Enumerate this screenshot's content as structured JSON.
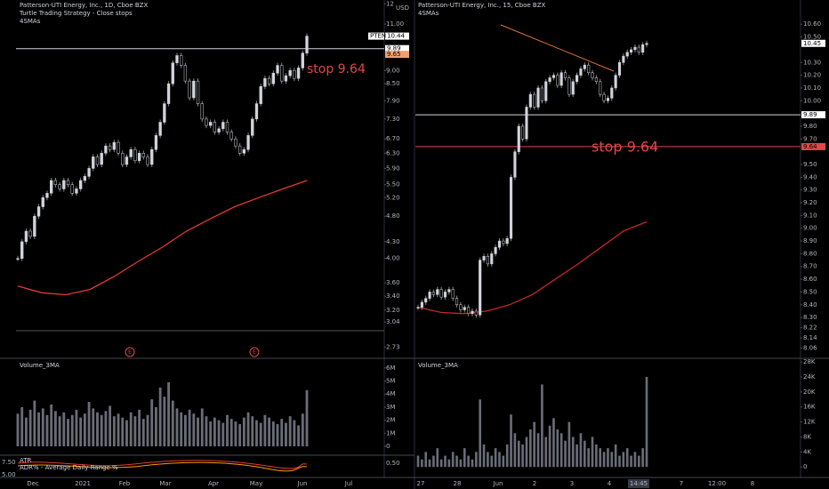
{
  "left": {
    "header": [
      "Patterson-UTI Energy, Inc., 1D, Cboe BZX",
      "Turtle Trading Strategy - Close stops",
      "4SMAs"
    ],
    "currency": "USD",
    "annotation": "stop 9.64",
    "volume_title": "Volume_3MA",
    "atr_titles": [
      "ATR",
      "ADR% - Average Daily Range %"
    ],
    "atr_left_labels": [
      "7.50",
      "5.00"
    ],
    "atr_tick": "0.50",
    "earnings": [
      "E",
      "E"
    ],
    "log": true,
    "ylim": [
      2.6,
      12.2
    ],
    "yticks": [
      {
        "value": 12,
        "label": "12"
      },
      {
        "value": 11,
        "label": "11.00"
      },
      {
        "value": 9,
        "label": "9.00"
      },
      {
        "value": 8.5,
        "label": "8.50"
      },
      {
        "value": 7.9,
        "label": "7.90"
      },
      {
        "value": 7.3,
        "label": "7.30"
      },
      {
        "value": 6.7,
        "label": "6.70"
      },
      {
        "value": 6.3,
        "label": "6.30"
      },
      {
        "value": 5.9,
        "label": "5.90"
      },
      {
        "value": 5.5,
        "label": "5.50"
      },
      {
        "value": 5.2,
        "label": "5.20"
      },
      {
        "value": 4.8,
        "label": "4.80"
      },
      {
        "value": 4.3,
        "label": "4.30"
      },
      {
        "value": 4,
        "label": "4.00"
      },
      {
        "value": 3.6,
        "label": "3.60"
      },
      {
        "value": 3.4,
        "label": "3.40"
      },
      {
        "value": 3.2,
        "label": "3.20"
      },
      {
        "value": 3.04,
        "label": "3.04"
      },
      {
        "value": 2.73,
        "label": "2.73"
      }
    ],
    "closes": [
      4.0,
      4.3,
      4.5,
      4.4,
      4.8,
      5.0,
      5.2,
      5.3,
      5.6,
      5.5,
      5.4,
      5.6,
      5.5,
      5.3,
      5.4,
      5.6,
      5.7,
      5.9,
      6.2,
      6.0,
      6.3,
      6.5,
      6.4,
      6.6,
      6.3,
      6.0,
      6.2,
      6.4,
      6.1,
      6.3,
      6.2,
      6.0,
      6.4,
      6.8,
      7.2,
      7.8,
      8.5,
      9.3,
      9.6,
      9.2,
      8.6,
      8.0,
      8.6,
      7.8,
      7.3,
      7.1,
      7.2,
      6.9,
      7.0,
      7.2,
      6.9,
      6.7,
      6.5,
      6.3,
      6.4,
      6.8,
      7.3,
      7.8,
      8.4,
      8.7,
      8.5,
      8.9,
      9.2,
      8.6,
      8.8,
      9.0,
      8.7,
      9.1,
      9.7,
      10.44
    ],
    "sma": [
      3.55,
      3.45,
      3.42,
      3.5,
      3.7,
      3.95,
      4.2,
      4.5,
      4.75,
      5.0,
      5.2,
      5.4,
      5.6
    ],
    "sma_color": "#e53935",
    "hlines": [
      {
        "value": 9.89,
        "color": "#d1d4dc"
      }
    ],
    "tags": [
      {
        "value": 10.44,
        "label": "10.44",
        "symbol": "PTEN",
        "color": "#ffffff"
      },
      {
        "value": 9.89,
        "label": "9.89",
        "color": "#ffffff"
      },
      {
        "value": 9.65,
        "label": "9.65",
        "color": "#f0a070"
      }
    ],
    "vlim": [
      -0.68,
      6.6
    ],
    "vticks": [
      {
        "value": 6,
        "label": "6M"
      },
      {
        "value": 5,
        "label": "5M"
      },
      {
        "value": 4,
        "label": "4M"
      },
      {
        "value": 3,
        "label": "3M"
      },
      {
        "value": 2,
        "label": "2M"
      },
      {
        "value": 1,
        "label": "1M"
      },
      0
    ],
    "volumes": [
      2.5,
      3,
      2.2,
      2.8,
      3.5,
      2.6,
      2.9,
      2.4,
      3.2,
      2.7,
      2.3,
      2.6,
      2.1,
      2.4,
      2.8,
      2.2,
      2.5,
      3.4,
      2.9,
      2.6,
      2.4,
      2.7,
      3.1,
      2.3,
      2.5,
      2.2,
      2.0,
      2.6,
      2.3,
      2.8,
      2.1,
      2.4,
      3.6,
      3.0,
      4.5,
      3.8,
      4.9,
      3.5,
      2.9,
      2.6,
      2.4,
      2.8,
      2.5,
      2.2,
      2.9,
      2.3,
      1.9,
      2.2,
      2.0,
      1.8,
      2.4,
      2.1,
      1.9,
      1.7,
      2.2,
      2.6,
      2.3,
      2.0,
      1.8,
      2.4,
      2.2,
      1.9,
      1.7,
      2.1,
      1.8,
      2.3,
      2.0,
      1.6,
      2.5,
      4.3
    ],
    "time_labels": [
      "Dec",
      "2021",
      "Feb",
      "Mar",
      "Apr",
      "May",
      "Jun",
      "Jul"
    ]
  },
  "right": {
    "header": [
      "Patterson-UTI Energy, Inc., 15, Cboe BZX",
      "4SMAs"
    ],
    "annotation": "stop 9.64",
    "volume_title": "Volume_3MA",
    "log": false,
    "ylim": [
      7.98,
      10.79
    ],
    "yticks": [
      {
        "value": 10.6,
        "label": "10.60"
      },
      {
        "value": 10.5,
        "label": "10.50"
      },
      {
        "value": 10.3,
        "label": "10.30"
      },
      {
        "value": 10.2,
        "label": "10.20"
      },
      {
        "value": 10.1,
        "label": "10.10"
      },
      {
        "value": 10,
        "label": "10.00"
      },
      {
        "value": 9.8,
        "label": "9.80"
      },
      {
        "value": 9.7,
        "label": "9.70"
      },
      {
        "value": 9.5,
        "label": "9.50"
      },
      {
        "value": 9.4,
        "label": "9.40"
      },
      {
        "value": 9.3,
        "label": "9.30"
      },
      {
        "value": 9.2,
        "label": "9.20"
      },
      {
        "value": 9.1,
        "label": "9.10"
      },
      {
        "value": 9,
        "label": "9.00"
      },
      {
        "value": 8.9,
        "label": "8.90"
      },
      {
        "value": 8.8,
        "label": "8.80"
      },
      {
        "value": 8.7,
        "label": "8.70"
      },
      {
        "value": 8.6,
        "label": "8.60"
      },
      {
        "value": 8.5,
        "label": "8.50"
      },
      {
        "value": 8.4,
        "label": "8.40"
      },
      {
        "value": 8.3,
        "label": "8.30"
      },
      {
        "value": 8.22,
        "label": "8.22"
      },
      {
        "value": 8.14,
        "label": "8.14"
      },
      {
        "value": 8.06,
        "label": "8.06"
      }
    ],
    "closes": [
      8.38,
      8.42,
      8.45,
      8.5,
      8.48,
      8.52,
      8.46,
      8.5,
      8.52,
      8.45,
      8.4,
      8.36,
      8.38,
      8.33,
      8.35,
      8.32,
      8.75,
      8.78,
      8.72,
      8.8,
      8.85,
      8.9,
      8.88,
      8.92,
      9.4,
      9.6,
      9.8,
      9.7,
      9.95,
      10.05,
      9.95,
      10.1,
      10.0,
      10.15,
      10.18,
      10.2,
      10.12,
      10.22,
      10.18,
      10.05,
      10.15,
      10.2,
      10.25,
      10.28,
      10.22,
      10.18,
      10.15,
      10.05,
      10.0,
      10.02,
      10.1,
      10.2,
      10.3,
      10.35,
      10.38,
      10.4,
      10.42,
      10.38,
      10.44,
      10.45
    ],
    "sma": [
      8.38,
      8.34,
      8.33,
      8.35,
      8.4,
      8.48,
      8.6,
      8.72,
      8.85,
      8.98,
      9.05
    ],
    "sma_color": "#c62828",
    "hlines": [
      {
        "value": 9.89,
        "color": "#d1d4dc"
      },
      {
        "value": 9.64,
        "color": "#e04848"
      }
    ],
    "tags": [
      {
        "value": 10.45,
        "label": "10.45",
        "color": "#ffffff"
      },
      {
        "value": 9.89,
        "label": "9.89",
        "color": "#ffffff"
      },
      {
        "value": 9.64,
        "label": "9.64",
        "color": "#e04848"
      }
    ],
    "vlim": [
      -2.8,
      28.5
    ],
    "vticks": [
      {
        "value": 28,
        "label": "28K"
      },
      {
        "value": 24,
        "label": "24K"
      },
      {
        "value": 20,
        "label": "20K"
      },
      {
        "value": 16,
        "label": "16K"
      },
      {
        "value": 12,
        "label": "12K"
      },
      {
        "value": 8,
        "label": "8K"
      },
      {
        "value": 4,
        "label": "4K"
      },
      0
    ],
    "volumes": [
      3,
      2,
      4,
      2,
      3,
      5,
      2,
      3,
      2,
      4,
      3,
      2,
      5,
      3,
      2,
      4,
      18,
      6,
      4,
      3,
      5,
      4,
      3,
      6,
      14,
      9,
      7,
      6,
      8,
      10,
      12,
      9,
      22,
      8,
      11,
      13,
      10,
      9,
      7,
      12,
      8,
      6,
      9,
      7,
      5,
      8,
      6,
      5,
      4,
      5,
      4,
      6,
      3,
      4,
      5,
      3,
      4,
      3,
      5,
      24
    ],
    "time_labels": [
      "27",
      "28",
      "Jun",
      "2",
      "3",
      "4",
      "14:45",
      "7",
      "12:00",
      "8"
    ]
  }
}
